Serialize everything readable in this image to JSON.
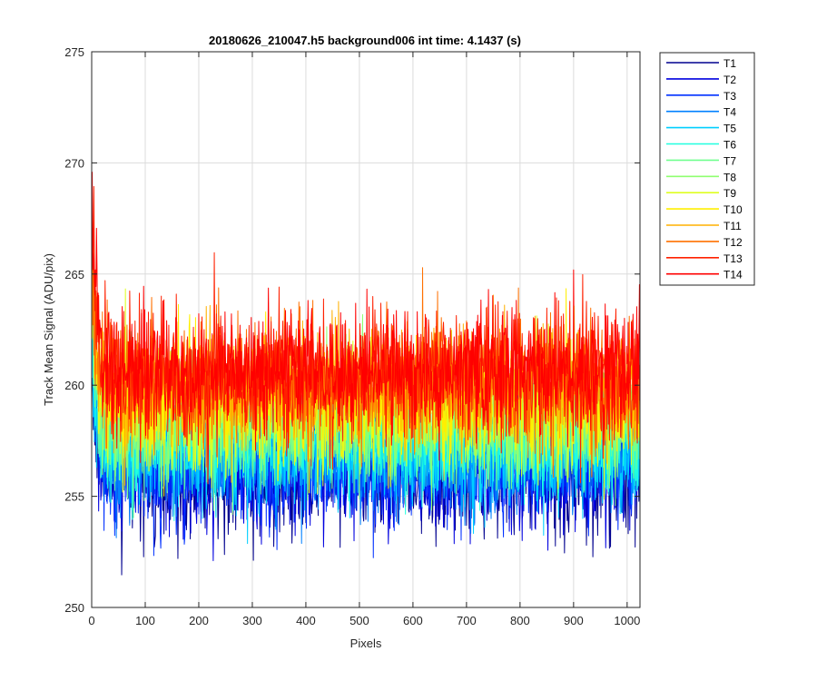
{
  "chart_data": {
    "type": "line",
    "title": "20180626_210047.h5  background006   int time: 4.1437 (s)",
    "xlabel": "Pixels",
    "ylabel": "Track Mean Signal (ADU/pix)",
    "xlim": [
      0,
      1024
    ],
    "ylim": [
      250,
      275
    ],
    "x_ticks": [
      0,
      100,
      200,
      300,
      400,
      500,
      600,
      700,
      800,
      900,
      1000
    ],
    "y_ticks": [
      250,
      255,
      260,
      265,
      270,
      275
    ],
    "grid": true,
    "legend_position": "outside-top-right",
    "series": [
      {
        "name": "T1",
        "color": "#00008f",
        "mean": 255.8,
        "spread": 1.3,
        "start": 263.0
      },
      {
        "name": "T2",
        "color": "#0000df",
        "mean": 256.1,
        "spread": 1.3,
        "start": 263.5
      },
      {
        "name": "T3",
        "color": "#0030ff",
        "mean": 256.4,
        "spread": 1.3,
        "start": 264.0
      },
      {
        "name": "T4",
        "color": "#0080ff",
        "mean": 256.8,
        "spread": 1.3,
        "start": 264.5
      },
      {
        "name": "T5",
        "color": "#00cfff",
        "mean": 257.2,
        "spread": 1.3,
        "start": 265.0
      },
      {
        "name": "T6",
        "color": "#20ffdf",
        "mean": 257.7,
        "spread": 1.3,
        "start": 265.5
      },
      {
        "name": "T7",
        "color": "#70ff8f",
        "mean": 258.2,
        "spread": 1.3,
        "start": 266.0
      },
      {
        "name": "T8",
        "color": "#8fff70",
        "mean": 258.6,
        "spread": 1.3,
        "start": 266.5
      },
      {
        "name": "T9",
        "color": "#dfff20",
        "mean": 259.0,
        "spread": 1.3,
        "start": 267.0
      },
      {
        "name": "T10",
        "color": "#ffef00",
        "mean": 259.4,
        "spread": 1.3,
        "start": 267.5
      },
      {
        "name": "T11",
        "color": "#ffb000",
        "mean": 259.8,
        "spread": 1.3,
        "start": 268.0
      },
      {
        "name": "T12",
        "color": "#ff7000",
        "mean": 260.2,
        "spread": 1.4,
        "start": 269.0
      },
      {
        "name": "T13",
        "color": "#ff2000",
        "mean": 260.5,
        "spread": 1.4,
        "start": 270.5
      },
      {
        "name": "T14",
        "color": "#ff0000",
        "mean": 260.6,
        "spread": 1.4,
        "start": 272.2
      }
    ]
  }
}
